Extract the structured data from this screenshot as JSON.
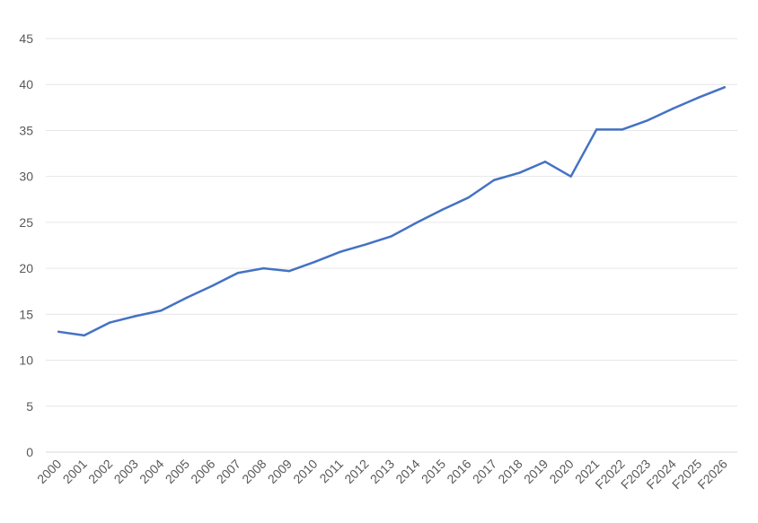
{
  "chart_data": {
    "type": "line",
    "title": "",
    "xlabel": "",
    "ylabel": "",
    "categories": [
      "2000",
      "2001",
      "2002",
      "2003",
      "2004",
      "2005",
      "2006",
      "2007",
      "2008",
      "2009",
      "2010",
      "2011",
      "2012",
      "2013",
      "2014",
      "2015",
      "2016",
      "2017",
      "2018",
      "2019",
      "2020",
      "2021",
      "F2022",
      "F2023",
      "F2024",
      "F2025",
      "F2026"
    ],
    "series": [
      {
        "values": [
          13.1,
          12.7,
          14.1,
          14.8,
          15.4,
          16.8,
          18.1,
          19.5,
          20.0,
          19.7,
          20.7,
          21.8,
          22.6,
          23.5,
          25.0,
          26.4,
          27.7,
          29.6,
          30.4,
          31.6,
          30.0,
          35.1,
          35.1,
          36.1,
          37.4,
          38.6,
          39.7
        ],
        "color": "#4472C4"
      }
    ],
    "ylim": [
      0,
      45
    ],
    "yticks": [
      0,
      5,
      10,
      15,
      20,
      25,
      30,
      35,
      40,
      45
    ],
    "grid": true,
    "legend": "none"
  }
}
